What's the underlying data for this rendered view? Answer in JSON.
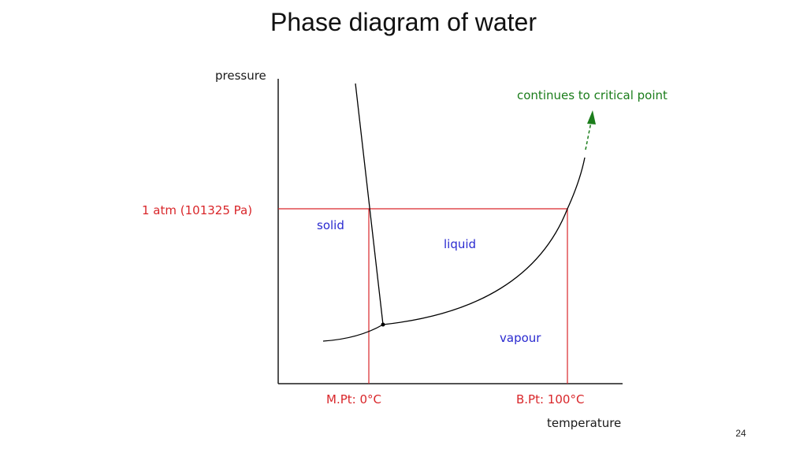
{
  "title": "Phase diagram of water",
  "slide_number": "24",
  "diagram": {
    "y_axis_label": "pressure",
    "x_axis_label": "temperature",
    "pressure_marker_label": "1 atm (101325 Pa)",
    "melting_point_label": "M.Pt: 0°C",
    "boiling_point_label": "B.Pt: 100°C",
    "region_labels": {
      "solid": "solid",
      "liquid": "liquid",
      "vapour": "vapour"
    },
    "critical_point_note": "continues to critical point"
  },
  "colors": {
    "axis": "#1a1a1a",
    "curve": "#000000",
    "reference_lines": "#d9262a",
    "region_text": "#2a2ad0",
    "arrow": "#1b7d1b",
    "title": "#111111"
  }
}
